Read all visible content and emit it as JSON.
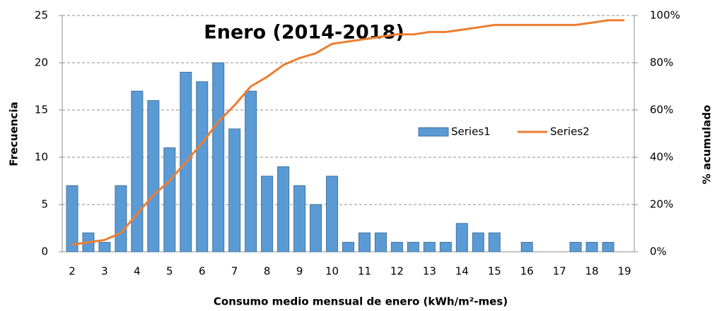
{
  "chart_data": {
    "type": "bar-line",
    "title": "Enero (2014-2018)",
    "x_label": "Consumo medio mensual de enero (kWh/m²-mes)",
    "y_label": "Frecuencia",
    "y2_label": "% acumulado",
    "categories": [
      "2",
      null,
      "3",
      null,
      "4",
      null,
      "5",
      null,
      "6",
      null,
      "7",
      null,
      "8",
      null,
      "9",
      null,
      "10",
      null,
      "11",
      null,
      "12",
      null,
      "13",
      null,
      "14",
      null,
      "15",
      null,
      "16",
      null,
      "17",
      null,
      "18",
      null,
      "19"
    ],
    "series": [
      {
        "name": "Series1",
        "type": "bar",
        "color": "#5b9bd5",
        "values": [
          7,
          2,
          1,
          7,
          17,
          16,
          11,
          19,
          18,
          20,
          13,
          17,
          8,
          9,
          7,
          5,
          8,
          1,
          2,
          2,
          1,
          1,
          1,
          1,
          3,
          2,
          2,
          0,
          1,
          0,
          0,
          1,
          1,
          1,
          0
        ]
      },
      {
        "name": "Series2",
        "type": "line",
        "color": "#ed7d31",
        "axis": "y2",
        "values": [
          3,
          4,
          5,
          8,
          16,
          24,
          30,
          38,
          46,
          55,
          62,
          70,
          74,
          79,
          82,
          84,
          88,
          89,
          90,
          91,
          92,
          92,
          93,
          93,
          94,
          95,
          96,
          96,
          96,
          96,
          96,
          96,
          97,
          98,
          98
        ]
      }
    ],
    "ylim": [
      0,
      25
    ],
    "yticks": [
      0,
      5,
      10,
      15,
      20,
      25
    ],
    "y2lim": [
      0,
      100
    ],
    "y2ticks": [
      {
        "value": 0,
        "label": "0%"
      },
      {
        "value": 20,
        "label": "20%"
      },
      {
        "value": 40,
        "label": "40%"
      },
      {
        "value": 60,
        "label": "60%"
      },
      {
        "value": 80,
        "label": "80%"
      },
      {
        "value": 100,
        "label": "100%"
      }
    ],
    "grid": true,
    "legend": "right"
  }
}
